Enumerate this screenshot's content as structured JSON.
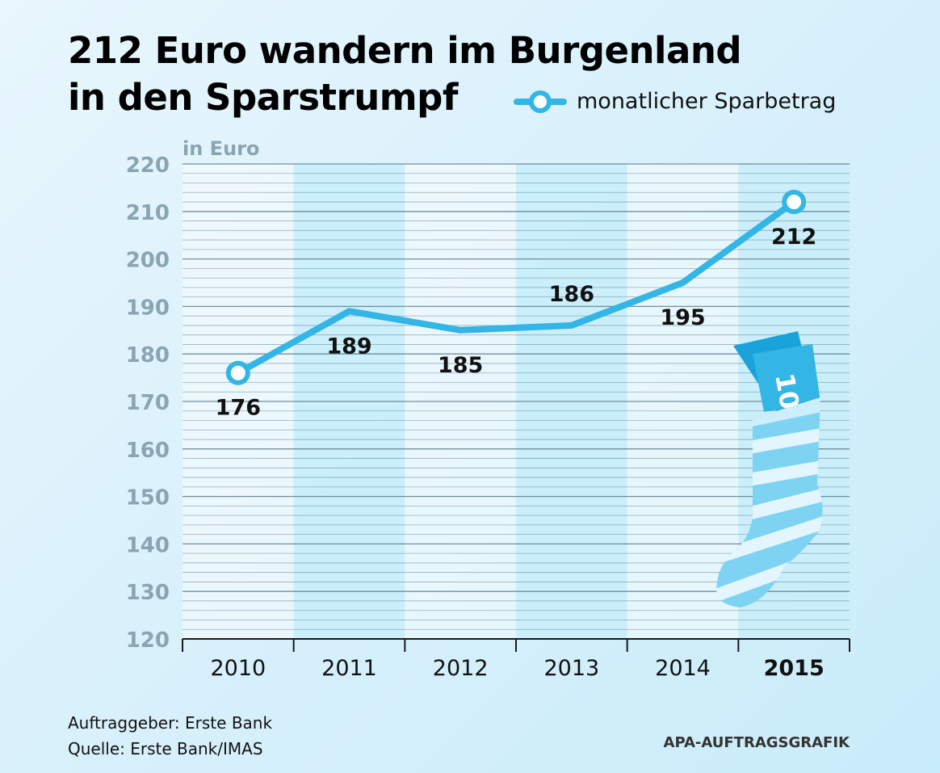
{
  "title_line1": "212 Euro wandern im Burgenland",
  "title_line2": "in den Sparstrumpf",
  "legend_label": "monatlicher Sparbetrag",
  "footer": {
    "client": "Auftraggeber: Erste Bank",
    "source": "Quelle: Erste Bank/IMAS",
    "credit": "APA-AUFTRAGSGRAFIK"
  },
  "colors": {
    "line": "#33b5e5",
    "axis_text": "#8aa5b2",
    "band": "#c9eefb",
    "grid": "#4e6b7a",
    "sock_light": "#7fd3f2",
    "sock_dark": "#1aa3da",
    "sock_pale": "#e3f6fd"
  },
  "sock_note_label": "10",
  "chart_data": {
    "type": "line",
    "categories": [
      "2010",
      "2011",
      "2012",
      "2013",
      "2014",
      "2015"
    ],
    "highlight_category": "2015",
    "series": [
      {
        "name": "monatlicher Sparbetrag",
        "values": [
          176,
          189,
          185,
          186,
          195,
          212
        ]
      }
    ],
    "value_labels": [
      "176",
      "189",
      "185",
      "186",
      "195",
      "212"
    ],
    "label_positions": [
      "below",
      "below",
      "below",
      "above",
      "below",
      "below"
    ],
    "ylabel": "in Euro",
    "ylim": [
      120,
      220
    ],
    "yticks": [
      220,
      210,
      200,
      190,
      180,
      170,
      160,
      150,
      140,
      130,
      120
    ],
    "grid": true
  }
}
